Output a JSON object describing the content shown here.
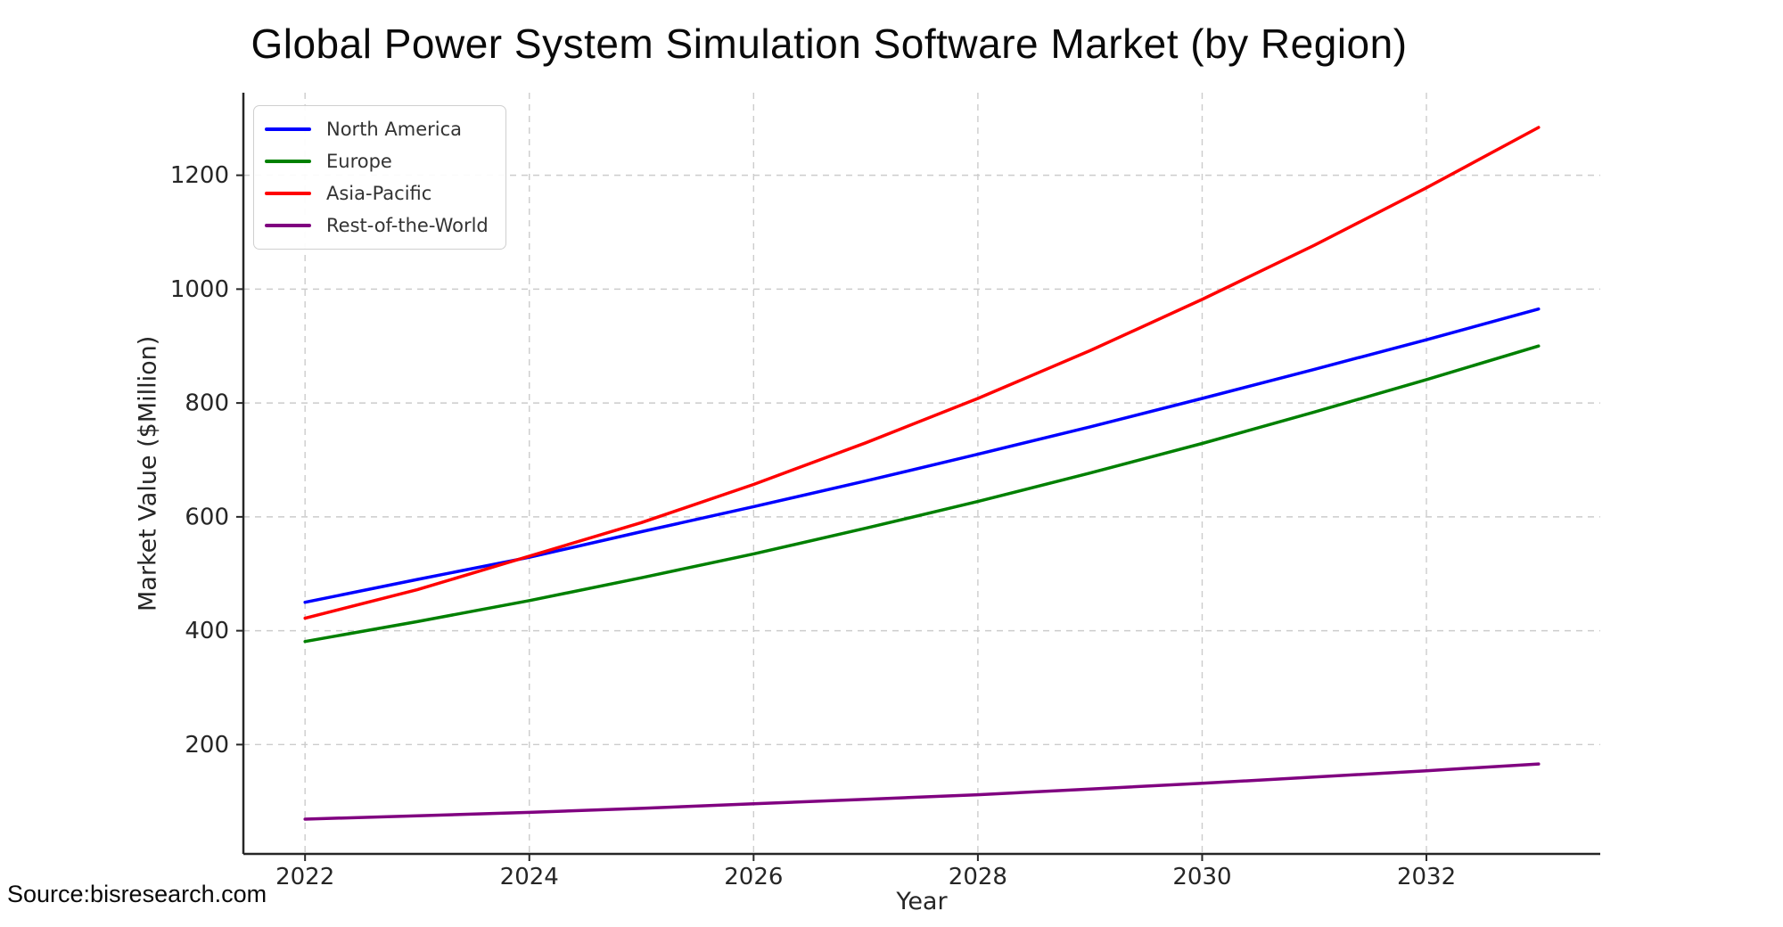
{
  "figure": {
    "source": "Source:bisresearch.com"
  },
  "chart_data": {
    "type": "line",
    "title": "Global Power System Simulation Software Market (by Region)",
    "xlabel": "Year",
    "ylabel": "Market Value ($Million)",
    "x": [
      2022,
      2023,
      2024,
      2025,
      2026,
      2027,
      2028,
      2029,
      2030,
      2031,
      2032,
      2033
    ],
    "x_ticks": [
      2022,
      2024,
      2026,
      2028,
      2030,
      2032
    ],
    "y_ticks": [
      200,
      400,
      600,
      800,
      1000,
      1200
    ],
    "xlim": [
      2021.45,
      2033.55
    ],
    "ylim": [
      8,
      1345
    ],
    "grid": true,
    "grid_style": "dashed",
    "legend_position": "upper-left",
    "series": [
      {
        "name": "North America",
        "color": "#0000ff",
        "values": [
          450,
          490,
          529,
          574,
          618,
          663,
          710,
          758,
          808,
          859,
          911,
          965
        ]
      },
      {
        "name": "Europe",
        "color": "#008000",
        "values": [
          381,
          416,
          453,
          493,
          535,
          580,
          627,
          677,
          729,
          784,
          841,
          900
        ]
      },
      {
        "name": "Asia-Pacific",
        "color": "#ff0000",
        "values": [
          422,
          472,
          531,
          590,
          657,
          730,
          808,
          892,
          982,
          1077,
          1178,
          1284
        ]
      },
      {
        "name": "Rest-of-the-World",
        "color": "#800080",
        "values": [
          69,
          75,
          81,
          88,
          96,
          104,
          112,
          122,
          132,
          143,
          154,
          166
        ]
      }
    ]
  }
}
